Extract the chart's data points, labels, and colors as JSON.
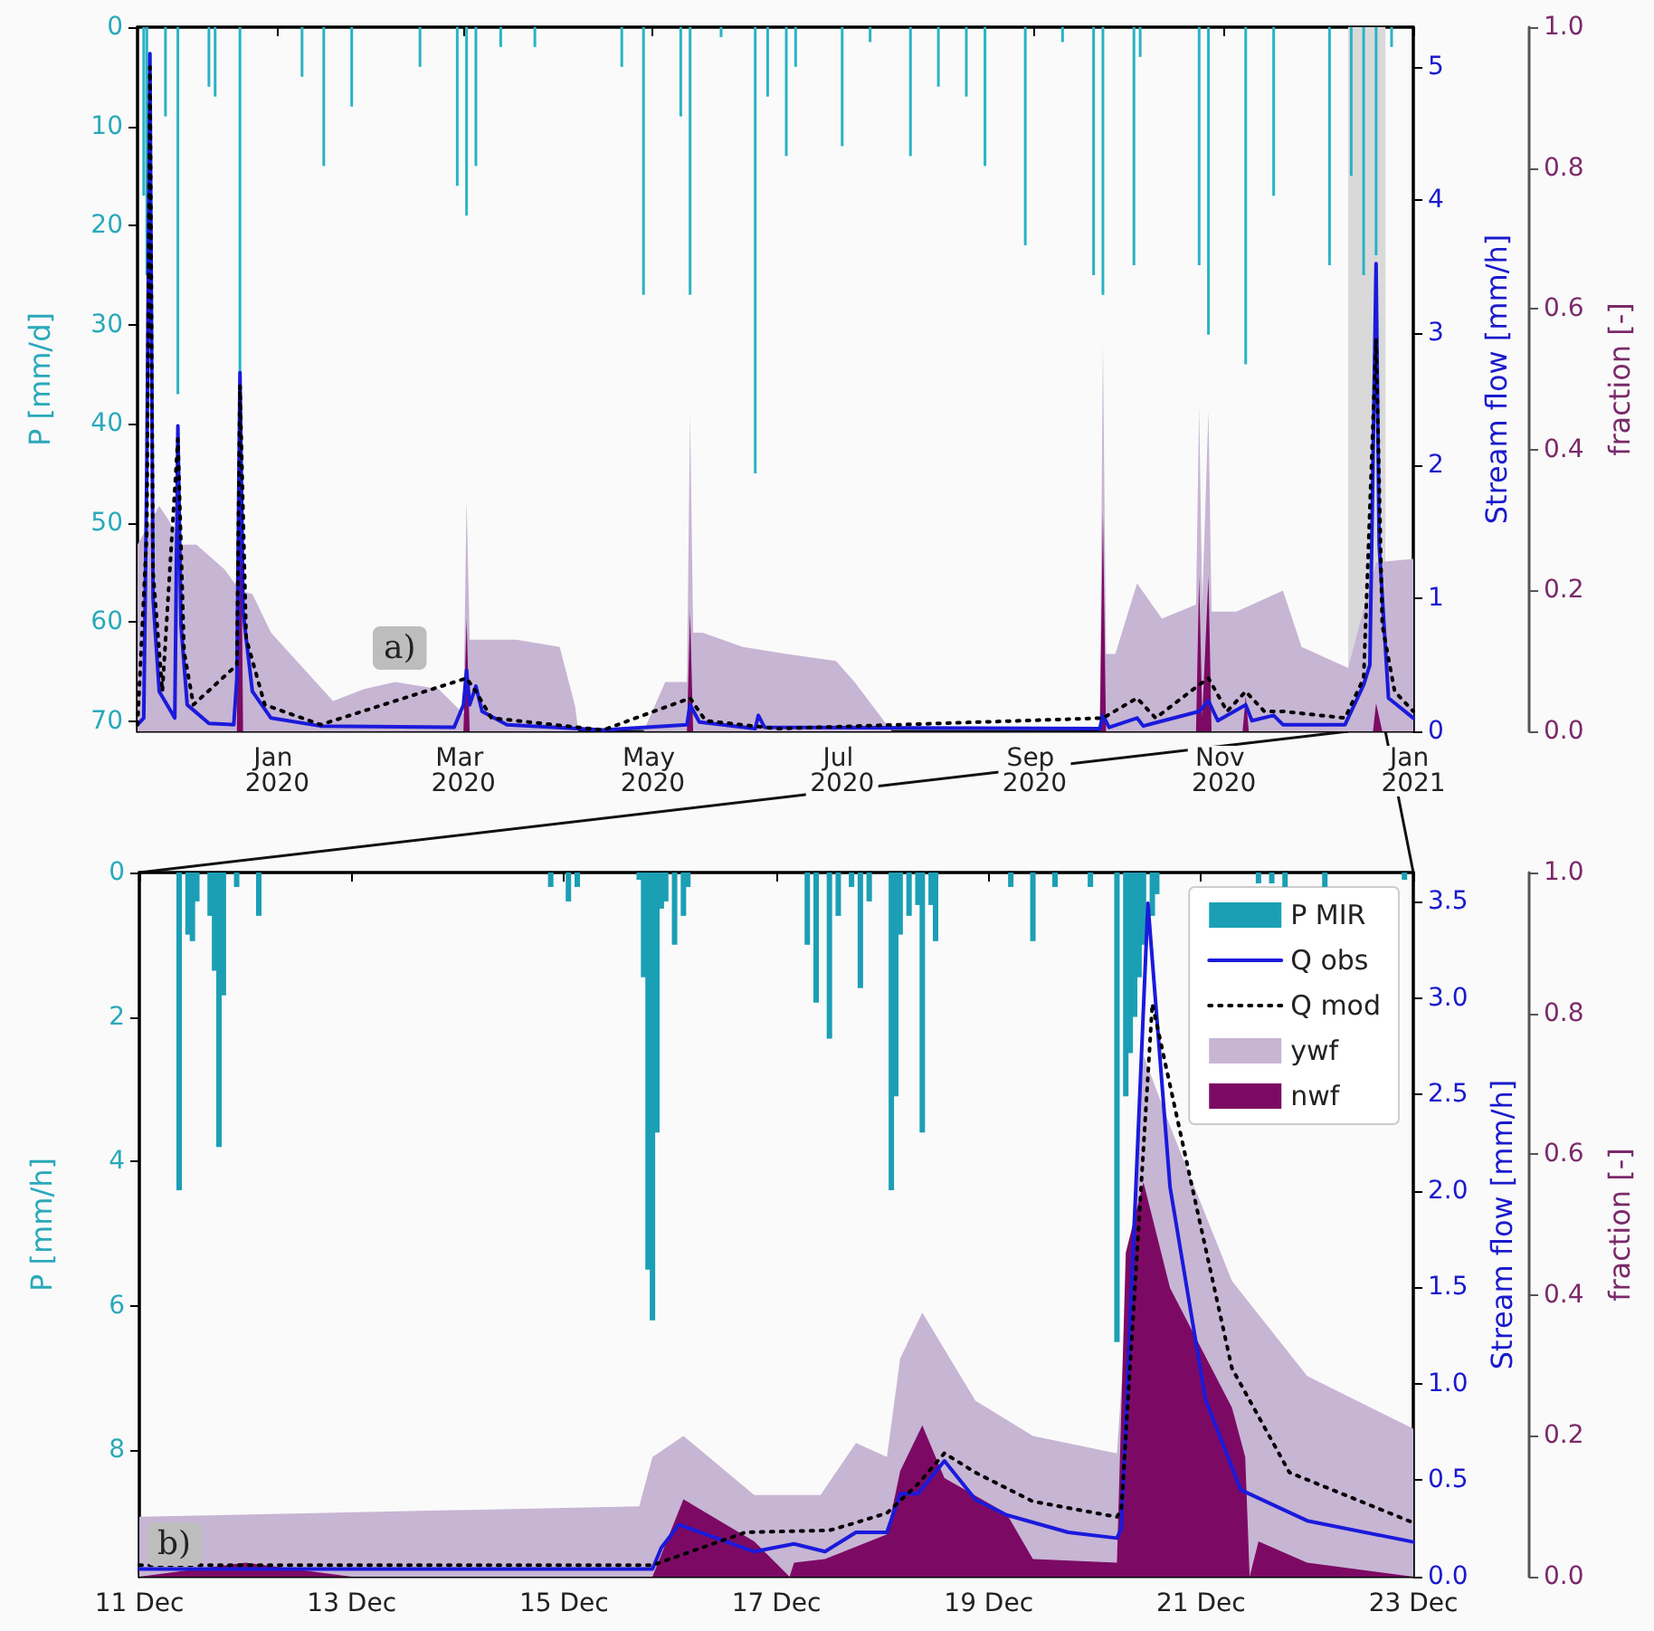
{
  "chart_data": [
    {
      "type": "bar",
      "ylabel": "P [mm/d]",
      "y2label": "Stream flow [mm/h]",
      "y3label": "fraction [-]",
      "xlim": [
        "2019-11-17",
        "2021-01-01"
      ],
      "xticks": [
        {
          "value": "2020-01",
          "label": "Jan 2020"
        },
        {
          "value": "2020-03",
          "label": "Mar 2020"
        },
        {
          "value": "2020-05",
          "label": "May 2020"
        },
        {
          "value": "2020-07",
          "label": "Jul 2020"
        },
        {
          "value": "2020-09",
          "label": "Sep 2020"
        },
        {
          "value": "2020-11",
          "label": "Nov 2020"
        },
        {
          "value": "2021-01",
          "label": "Jan 2021"
        }
      ],
      "ylim": [
        71,
        0
      ],
      "yticks": [
        0,
        10,
        20,
        30,
        40,
        50,
        60,
        70
      ],
      "y2lim": [
        0,
        5.3
      ],
      "y2ticks": [
        0,
        1,
        2,
        3,
        4,
        5
      ],
      "y3lim": [
        0,
        1
      ],
      "y3ticks": [
        {
          "value": 0,
          "label": "0.0"
        },
        {
          "value": 0.2,
          "label": "0.2"
        },
        {
          "value": 0.4,
          "label": "0.4"
        },
        {
          "value": 0.6,
          "label": "0.6"
        },
        {
          "value": 0.8,
          "label": "0.8"
        },
        {
          "value": 1,
          "label": "1.0"
        }
      ],
      "bands": [
        {
          "axis": "x",
          "from": "2020-12-11",
          "to": "2020-12-23",
          "color": "#d9d9d9"
        }
      ],
      "annotations": [
        "a)"
      ],
      "series": [
        {
          "type": "area",
          "axis": "y3",
          "color": "#c7b5d4",
          "x": [
            "2019-11-17",
            "2019-11-24",
            "2019-11-27",
            "2019-12-01",
            "2019-12-06",
            "2019-12-15",
            "2019-12-20",
            "2019-12-24",
            "2019-12-30",
            "2020-01-19",
            "2020-01-29",
            "2020-02-08",
            "2020-02-22",
            "2020-03-01",
            "2020-03-02",
            "2020-03-03",
            "2020-03-08",
            "2020-03-18",
            "2020-04-01",
            "2020-04-06",
            "2020-04-07",
            "2020-04-28",
            "2020-05-05",
            "2020-05-12",
            "2020-05-13",
            "2020-05-14",
            "2020-05-17",
            "2020-05-30",
            "2020-06-13",
            "2020-06-29",
            "2020-07-05",
            "2020-07-17",
            "2020-09-22",
            "2020-09-23",
            "2020-09-24",
            "2020-09-27",
            "2020-10-04",
            "2020-10-12",
            "2020-10-23",
            "2020-10-24",
            "2020-10-25",
            "2020-10-27",
            "2020-10-28",
            "2020-11-05",
            "2020-11-20",
            "2020-11-26",
            "2020-12-11",
            "2020-12-20",
            "2021-01-01"
          ],
          "values": [
            0.265,
            0.32,
            0.3,
            0.265,
            0.265,
            0.23,
            0.2,
            0.195,
            0.14,
            0.043,
            0.06,
            0.07,
            0.06,
            0.025,
            0.33,
            0.13,
            0.13,
            0.13,
            0.12,
            0.035,
            0,
            0,
            0.07,
            0.07,
            0.45,
            0.14,
            0.14,
            0.12,
            0.11,
            0.1,
            0.07,
            0,
            0,
            0.55,
            0.11,
            0.11,
            0.21,
            0.16,
            0.18,
            0.46,
            0.18,
            0.455,
            0.17,
            0.17,
            0.2,
            0.12,
            0.09,
            0.24,
            0.245
          ]
        },
        {
          "type": "area",
          "axis": "y3",
          "color": "#7c0a64",
          "x": [
            "2019-11-17",
            "2019-12-19",
            "2019-12-20",
            "2019-12-21",
            "2020-03-01",
            "2020-03-02",
            "2020-03-03",
            "2020-05-12",
            "2020-05-13",
            "2020-05-14",
            "2020-09-22",
            "2020-09-23",
            "2020-09-24",
            "2020-10-23",
            "2020-10-24",
            "2020-10-25",
            "2020-10-27",
            "2020-10-28",
            "2020-11-07",
            "2020-11-08",
            "2020-11-09",
            "2020-12-19",
            "2020-12-20",
            "2020-12-22",
            "2021-01-01"
          ],
          "values": [
            0,
            0,
            0.5,
            0,
            0,
            0.16,
            0,
            0,
            0.17,
            0,
            0,
            0.31,
            0,
            0,
            0.22,
            0.02,
            0.22,
            0,
            0,
            0.05,
            0,
            0,
            0.04,
            0,
            0
          ]
        },
        {
          "axis": "y",
          "color": "#2ab3c5",
          "x": [
            "2019-11-19",
            "2019-11-20",
            "2019-11-26",
            "2019-11-30",
            "2019-12-10",
            "2019-12-12",
            "2019-12-20",
            "2020-01-09",
            "2020-01-16",
            "2020-01-25",
            "2020-02-16",
            "2020-02-28",
            "2020-03-02",
            "2020-03-05",
            "2020-03-13",
            "2020-03-24",
            "2020-04-21",
            "2020-04-28",
            "2020-05-10",
            "2020-05-13",
            "2020-05-23",
            "2020-06-03",
            "2020-06-07",
            "2020-06-13",
            "2020-06-16",
            "2020-07-01",
            "2020-07-10",
            "2020-07-23",
            "2020-08-01",
            "2020-08-10",
            "2020-08-16",
            "2020-08-29",
            "2020-09-10",
            "2020-09-20",
            "2020-09-23",
            "2020-10-03",
            "2020-10-05",
            "2020-10-24",
            "2020-10-27",
            "2020-11-08",
            "2020-11-17",
            "2020-12-05",
            "2020-12-12",
            "2020-12-16",
            "2020-12-20",
            "2020-12-25"
          ],
          "values": [
            17,
            25,
            9,
            37,
            6,
            7,
            35,
            5,
            14,
            8,
            4,
            16,
            19,
            14,
            2,
            2,
            4,
            27,
            9,
            27,
            1,
            45,
            7,
            13,
            4,
            12,
            1.5,
            13,
            6,
            7,
            14,
            22,
            1.5,
            25,
            27,
            24,
            3,
            24,
            31,
            34,
            17,
            24,
            15,
            25,
            23,
            2
          ]
        },
        {
          "type": "line",
          "axis": "y2",
          "color": "#1a1adb",
          "x": [
            "2019-11-17",
            "2019-11-19",
            "2019-11-20",
            "2019-11-21",
            "2019-11-22",
            "2019-11-24",
            "2019-11-29",
            "2019-11-30",
            "2019-12-01",
            "2019-12-03",
            "2019-12-10",
            "2019-12-18",
            "2019-12-19",
            "2019-12-20",
            "2019-12-21",
            "2019-12-24",
            "2019-12-30",
            "2020-01-15",
            "2020-02-27",
            "2020-03-01",
            "2020-03-02",
            "2020-03-03",
            "2020-03-05",
            "2020-03-07",
            "2020-03-15",
            "2020-04-15",
            "2020-05-12",
            "2020-05-13",
            "2020-05-16",
            "2020-06-03",
            "2020-06-04",
            "2020-06-06",
            "2020-09-22",
            "2020-09-23",
            "2020-09-25",
            "2020-10-04",
            "2020-10-06",
            "2020-10-24",
            "2020-10-27",
            "2020-10-30",
            "2020-11-08",
            "2020-11-10",
            "2020-11-17",
            "2020-11-20",
            "2020-12-10",
            "2020-12-16",
            "2020-12-18",
            "2020-12-20",
            "2020-12-21",
            "2020-12-24",
            "2021-01-01"
          ],
          "values": [
            0.05,
            0.1,
            2,
            5.1,
            1,
            0.3,
            0.1,
            2.3,
            0.8,
            0.2,
            0.06,
            0.05,
            0.4,
            2.7,
            0.9,
            0.3,
            0.1,
            0.04,
            0.03,
            0.2,
            0.46,
            0.2,
            0.34,
            0.15,
            0.05,
            0.01,
            0.05,
            0.2,
            0.07,
            0.02,
            0.12,
            0.03,
            0.02,
            0.12,
            0.03,
            0.1,
            0.04,
            0.15,
            0.23,
            0.08,
            0.2,
            0.08,
            0.12,
            0.05,
            0.05,
            0.35,
            0.5,
            3.52,
            1.4,
            0.25,
            0.1
          ]
        },
        {
          "type": "line",
          "axis": "y2",
          "color": "#000000",
          "line_style": "dotted",
          "x": [
            "2019-11-17",
            "2019-11-20",
            "2019-11-21",
            "2019-11-22",
            "2019-11-25",
            "2019-11-30",
            "2019-12-02",
            "2019-12-05",
            "2019-12-19",
            "2019-12-20",
            "2019-12-22",
            "2019-12-28",
            "2020-01-15",
            "2020-03-02",
            "2020-03-05",
            "2020-03-10",
            "2020-04-15",
            "2020-05-13",
            "2020-05-18",
            "2020-06-10",
            "2020-09-23",
            "2020-10-04",
            "2020-10-10",
            "2020-10-24",
            "2020-10-27",
            "2020-11-02",
            "2020-11-08",
            "2020-11-14",
            "2020-11-20",
            "2020-12-10",
            "2020-12-16",
            "2020-12-20",
            "2020-12-22",
            "2020-12-26",
            "2021-01-01"
          ],
          "values": [
            0.05,
            1.5,
            5,
            1.2,
            0.3,
            2.2,
            0.6,
            0.2,
            0.5,
            2.6,
            0.7,
            0.2,
            0.05,
            0.4,
            0.3,
            0.1,
            0.01,
            0.25,
            0.08,
            0.02,
            0.1,
            0.25,
            0.1,
            0.35,
            0.4,
            0.15,
            0.3,
            0.15,
            0.15,
            0.1,
            0.4,
            2.95,
            0.8,
            0.3,
            0.15
          ]
        }
      ]
    },
    {
      "type": "bar",
      "ylabel": "P [mm/h]",
      "y2label": "Stream flow [mm/h]",
      "y3label": "fraction [-]",
      "legend": "top right",
      "xlim": [
        "2020-12-11",
        "2020-12-23"
      ],
      "xticks": [
        {
          "value": "2020-12-11",
          "label": "11 Dec"
        },
        {
          "value": "2020-12-13",
          "label": "13 Dec"
        },
        {
          "value": "2020-12-15",
          "label": "15 Dec"
        },
        {
          "value": "2020-12-17",
          "label": "17 Dec"
        },
        {
          "value": "2020-12-19",
          "label": "19 Dec"
        },
        {
          "value": "2020-12-21",
          "label": "21 Dec"
        },
        {
          "value": "2020-12-23",
          "label": "23 Dec"
        }
      ],
      "ylim": [
        9.75,
        0
      ],
      "yticks": [
        0,
        2,
        4,
        6,
        8
      ],
      "y2lim": [
        0,
        3.65
      ],
      "y2ticks": [
        {
          "value": 0,
          "label": "0.0"
        },
        0.5,
        {
          "value": 1,
          "label": "1.0"
        },
        1.5,
        {
          "value": 2,
          "label": "2.0"
        },
        2.5,
        {
          "value": 3,
          "label": "3.0"
        },
        3.5
      ],
      "y3lim": [
        0,
        1
      ],
      "y3ticks": [
        {
          "value": 0,
          "label": "0.0"
        },
        {
          "value": 0.2,
          "label": "0.2"
        },
        {
          "value": 0.4,
          "label": "0.4"
        },
        {
          "value": 0.6,
          "label": "0.6"
        },
        {
          "value": 0.8,
          "label": "0.8"
        },
        {
          "value": 1,
          "label": "1.0"
        }
      ],
      "annotations": [
        "b)"
      ],
      "series": [
        {
          "name": "P MIR",
          "axis": "y",
          "color": "#1b9fb5",
          "x": [
            "2020-12-11T09:00",
            "2020-12-11T11:00",
            "2020-12-11T12:00",
            "2020-12-11T13:00",
            "2020-12-11T16:00",
            "2020-12-11T17:00",
            "2020-12-11T18:00",
            "2020-12-11T19:00",
            "2020-12-11T22:00",
            "2020-12-12T03:00",
            "2020-12-14T21:00",
            "2020-12-15T01:00",
            "2020-12-15T03:00",
            "2020-12-15T17:00",
            "2020-12-15T18:00",
            "2020-12-15T19:00",
            "2020-12-15T20:00",
            "2020-12-15T21:00",
            "2020-12-15T22:00",
            "2020-12-15T23:00",
            "2020-12-16T01:00",
            "2020-12-16T03:00",
            "2020-12-16T04:00",
            "2020-12-17T07:00",
            "2020-12-17T09:00",
            "2020-12-17T12:00",
            "2020-12-17T14:00",
            "2020-12-17T17:00",
            "2020-12-17T19:00",
            "2020-12-17T21:00",
            "2020-12-18T02:00",
            "2020-12-18T03:00",
            "2020-12-18T04:00",
            "2020-12-18T06:00",
            "2020-12-18T08:00",
            "2020-12-18T09:00",
            "2020-12-18T11:00",
            "2020-12-18T12:00",
            "2020-12-19T05:00",
            "2020-12-19T10:00",
            "2020-12-19T15:00",
            "2020-12-19T23:00",
            "2020-12-20T05:00",
            "2020-12-20T07:00",
            "2020-12-20T08:00",
            "2020-12-20T09:00",
            "2020-12-20T10:00",
            "2020-12-20T11:00",
            "2020-12-20T13:00",
            "2020-12-20T14:00",
            "2020-12-21T13:00",
            "2020-12-21T16:00",
            "2020-12-21T19:00",
            "2020-12-22T04:00",
            "2020-12-22T22:00"
          ],
          "values": [
            4.4,
            0.86,
            0.95,
            0.4,
            0.6,
            1.36,
            3.8,
            1.7,
            0.2,
            0.6,
            0.2,
            0.4,
            0.2,
            0.1,
            1.45,
            5.5,
            6.2,
            3.6,
            0.5,
            0.4,
            1,
            0.6,
            0.2,
            1,
            1.8,
            2.3,
            0.6,
            0.2,
            1.6,
            0.4,
            4.4,
            3.1,
            0.86,
            0.6,
            0.45,
            3.6,
            0.45,
            0.95,
            0.2,
            0.95,
            0.2,
            0.2,
            6.5,
            3.1,
            2.5,
            2,
            1.45,
            1,
            0.6,
            0.3,
            0.15,
            0.15,
            0.2,
            0.2,
            0.1
          ]
        },
        {
          "name": "Q obs",
          "type": "line",
          "axis": "y2",
          "color": "#1a1adb",
          "x": [
            "2020-12-11T00:00",
            "2020-12-15T20:00",
            "2020-12-15T22:00",
            "2020-12-16T02:00",
            "2020-12-16T19:00",
            "2020-12-17T04:00",
            "2020-12-17T11:00",
            "2020-12-17T18:00",
            "2020-12-18T01:00",
            "2020-12-18T04:00",
            "2020-12-18T08:00",
            "2020-12-18T14:00",
            "2020-12-18T21:00",
            "2020-12-19T04:00",
            "2020-12-19T18:00",
            "2020-12-20T05:00",
            "2020-12-20T06:00",
            "2020-12-20T12:00",
            "2020-12-20T17:00",
            "2020-12-21T01:00",
            "2020-12-21T09:00",
            "2020-12-22T00:00",
            "2020-12-23T00:00"
          ],
          "values": [
            0.04,
            0.04,
            0.15,
            0.27,
            0.13,
            0.17,
            0.13,
            0.23,
            0.23,
            0.43,
            0.43,
            0.6,
            0.4,
            0.32,
            0.23,
            0.2,
            0.25,
            3.49,
            2.02,
            0.92,
            0.45,
            0.29,
            0.18
          ]
        },
        {
          "name": "Q mod",
          "type": "line",
          "axis": "y2",
          "color": "#000000",
          "line_style": "dotted",
          "x": [
            "2020-12-11T00:00",
            "2020-12-15T20:00",
            "2020-12-16T17:00",
            "2020-12-17T12:00",
            "2020-12-17T18:00",
            "2020-12-18T01:00",
            "2020-12-18T08:00",
            "2020-12-18T14:00",
            "2020-12-18T21:00",
            "2020-12-19T10:00",
            "2020-12-20T05:00",
            "2020-12-20T06:00",
            "2020-12-20T13:00",
            "2020-12-20T22:00",
            "2020-12-21T07:00",
            "2020-12-21T20:00",
            "2020-12-23T00:00"
          ],
          "values": [
            0.06,
            0.06,
            0.23,
            0.24,
            0.28,
            0.33,
            0.48,
            0.64,
            0.54,
            0.39,
            0.31,
            0.35,
            2.97,
            2.02,
            1.08,
            0.54,
            0.28
          ]
        },
        {
          "name": "ywf",
          "type": "area",
          "axis": "y3",
          "color": "#c7b5d4",
          "x": [
            "2020-12-11T00:00",
            "2020-12-15T17:00",
            "2020-12-15T20:00",
            "2020-12-16T03:00",
            "2020-12-16T19:00",
            "2020-12-17T10:00",
            "2020-12-17T18:00",
            "2020-12-18T01:00",
            "2020-12-18T04:00",
            "2020-12-18T09:00",
            "2020-12-18T21:00",
            "2020-12-19T10:00",
            "2020-12-20T05:00",
            "2020-12-20T11:00",
            "2020-12-20T17:00",
            "2020-12-21T07:00",
            "2020-12-22T00:00",
            "2020-12-23T00:00"
          ],
          "values": [
            0.085,
            0.1,
            0.17,
            0.2,
            0.116,
            0.116,
            0.19,
            0.17,
            0.31,
            0.375,
            0.25,
            0.2,
            0.175,
            0.74,
            0.64,
            0.42,
            0.285,
            0.21
          ]
        },
        {
          "name": "nwf",
          "type": "area",
          "axis": "y3",
          "color": "#7c0a64",
          "x": [
            "2020-12-11T00:00",
            "2020-12-12T00:00",
            "2020-12-13T00:00",
            "2020-12-15T20:00",
            "2020-12-16T03:00",
            "2020-12-16T19:00",
            "2020-12-17T03:00",
            "2020-12-17T04:00",
            "2020-12-17T11:00",
            "2020-12-18T01:00",
            "2020-12-18T04:00",
            "2020-12-18T09:00",
            "2020-12-18T14:00",
            "2020-12-19T04:00",
            "2020-12-19T10:00",
            "2020-12-20T05:00",
            "2020-12-20T07:00",
            "2020-12-20T11:00",
            "2020-12-20T17:00",
            "2020-12-21T07:00",
            "2020-12-21T10:00",
            "2020-12-21T11:00",
            "2020-12-21T13:00",
            "2020-12-22T00:00",
            "2020-12-23T00:00"
          ],
          "values": [
            0,
            0.02,
            0,
            0,
            0.11,
            0.05,
            0,
            0.02,
            0.025,
            0.06,
            0.15,
            0.215,
            0.14,
            0.09,
            0.025,
            0.02,
            0.46,
            0.56,
            0.41,
            0.24,
            0.17,
            0,
            0.05,
            0.02,
            0
          ]
        }
      ]
    }
  ]
}
